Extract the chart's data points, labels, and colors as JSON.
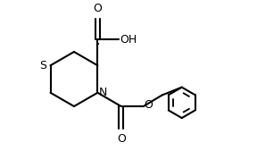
{
  "line_width": 1.5,
  "background_color": "#ffffff",
  "line_color": "#000000",
  "figsize": [
    2.88,
    1.78
  ],
  "dpi": 100,
  "xlim": [
    0,
    10
  ],
  "ylim": [
    0,
    6.2
  ]
}
